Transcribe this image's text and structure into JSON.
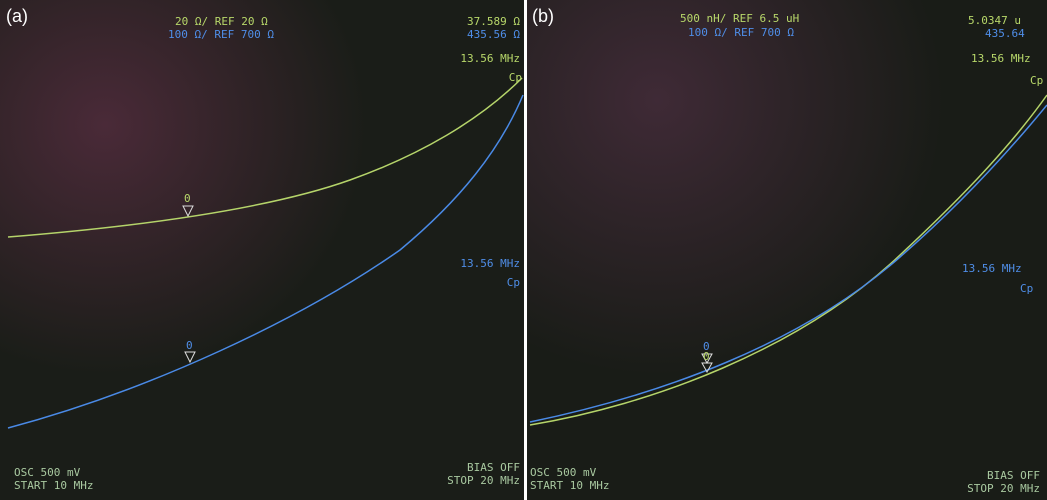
{
  "panels": [
    {
      "label": "(a)",
      "scale_top": "20 Ω/ REF 20 Ω",
      "scale_bottom": "100 Ω/ REF 700 Ω",
      "readout_top": "37.589 Ω",
      "readout_bottom": "435.56 Ω",
      "freq_top": "13.56 MHz",
      "param_top": "Cp",
      "freq_bottom": "13.56 MHz",
      "param_bottom": "Cp",
      "marker_top": "0",
      "marker_bottom": "0",
      "osc": "OSC 500 mV",
      "start": "START 10 MHz",
      "bias": "BIAS OFF",
      "stop": "STOP 20 MHz"
    },
    {
      "label": "(b)",
      "scale_top": "500 nH/ REF 6.5 uH",
      "scale_bottom": "100 Ω/ REF 700 Ω",
      "readout_top": "5.0347 u",
      "readout_bottom": "435.64",
      "freq_top": "13.56 MHz",
      "param_top": "Cp",
      "freq_bottom": "13.56 MHz",
      "param_bottom": "Cp",
      "marker_top": "0",
      "marker_bottom": "0",
      "osc": "OSC 500 mV",
      "start": "START 10 MHz",
      "bias": "BIAS OFF",
      "stop": "STOP 20 MHz"
    }
  ]
}
